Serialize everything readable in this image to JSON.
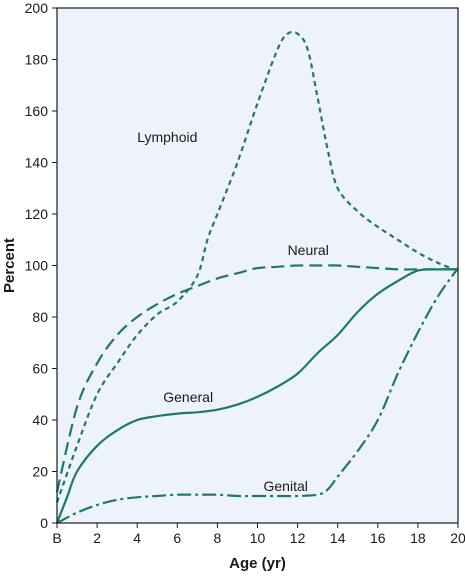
{
  "chart_data": {
    "type": "line",
    "title": "",
    "xlabel": "Age (yr)",
    "ylabel": "Percent",
    "xlim": [
      0,
      20
    ],
    "ylim": [
      0,
      200
    ],
    "x_ticks": [
      {
        "value": 0,
        "label": "B"
      },
      {
        "value": 2,
        "label": "2"
      },
      {
        "value": 4,
        "label": "4"
      },
      {
        "value": 6,
        "label": "6"
      },
      {
        "value": 8,
        "label": "8"
      },
      {
        "value": 10,
        "label": "10"
      },
      {
        "value": 12,
        "label": "12"
      },
      {
        "value": 14,
        "label": "14"
      },
      {
        "value": 16,
        "label": "16"
      },
      {
        "value": 18,
        "label": "18"
      },
      {
        "value": 20,
        "label": "20"
      }
    ],
    "y_ticks": [
      {
        "value": 0,
        "label": "0"
      },
      {
        "value": 20,
        "label": "20"
      },
      {
        "value": 40,
        "label": "40"
      },
      {
        "value": 60,
        "label": "60"
      },
      {
        "value": 80,
        "label": "80"
      },
      {
        "value": 100,
        "label": "100"
      },
      {
        "value": 120,
        "label": "120"
      },
      {
        "value": 140,
        "label": "140"
      },
      {
        "value": 160,
        "label": "160"
      },
      {
        "value": 180,
        "label": "180"
      },
      {
        "value": 200,
        "label": "200"
      }
    ],
    "grid": false,
    "plot_background": "#eef3fb",
    "line_color": "#1f7a64",
    "series": [
      {
        "name": "Lymphoid",
        "dash": "5,4",
        "label_at": [
          4,
          148
        ],
        "points": [
          [
            0,
            8
          ],
          [
            1,
            30
          ],
          [
            2,
            50
          ],
          [
            3,
            62
          ],
          [
            4,
            73
          ],
          [
            5,
            81
          ],
          [
            6,
            86
          ],
          [
            7,
            96
          ],
          [
            7.5,
            110
          ],
          [
            8,
            120
          ],
          [
            9,
            140
          ],
          [
            10,
            163
          ],
          [
            11,
            184
          ],
          [
            11.5,
            190
          ],
          [
            12,
            190
          ],
          [
            12.5,
            184
          ],
          [
            13,
            165
          ],
          [
            13.5,
            145
          ],
          [
            14,
            130
          ],
          [
            15,
            121
          ],
          [
            16,
            115
          ],
          [
            17,
            110
          ],
          [
            18,
            105
          ],
          [
            19,
            101
          ],
          [
            20,
            98
          ]
        ]
      },
      {
        "name": "Neural",
        "dash": "13,6",
        "label_at": [
          11.5,
          104
        ],
        "points": [
          [
            0,
            12
          ],
          [
            1,
            45
          ],
          [
            2,
            62
          ],
          [
            3,
            73
          ],
          [
            4,
            80
          ],
          [
            5,
            85
          ],
          [
            6,
            89
          ],
          [
            7,
            92
          ],
          [
            8,
            95
          ],
          [
            9,
            97
          ],
          [
            10,
            99
          ],
          [
            11,
            99.5
          ],
          [
            12,
            100
          ],
          [
            13,
            100
          ],
          [
            14,
            100
          ],
          [
            15,
            99.5
          ],
          [
            16,
            99
          ],
          [
            17,
            98.5
          ],
          [
            18,
            98.5
          ],
          [
            19,
            98.5
          ],
          [
            20,
            98.5
          ]
        ]
      },
      {
        "name": "General",
        "dash": "",
        "label_at": [
          5.3,
          47
        ],
        "points": [
          [
            0,
            0
          ],
          [
            0.5,
            10
          ],
          [
            1,
            20
          ],
          [
            2,
            30
          ],
          [
            3,
            36
          ],
          [
            4,
            40
          ],
          [
            5,
            41.5
          ],
          [
            6,
            42.5
          ],
          [
            7,
            43
          ],
          [
            8,
            44
          ],
          [
            9,
            46
          ],
          [
            10,
            49
          ],
          [
            11,
            53
          ],
          [
            12,
            58
          ],
          [
            13,
            66
          ],
          [
            14,
            73
          ],
          [
            15,
            82
          ],
          [
            16,
            89
          ],
          [
            17,
            94
          ],
          [
            18,
            98
          ],
          [
            19,
            98.5
          ],
          [
            20,
            98.5
          ]
        ]
      },
      {
        "name": "Genital",
        "dash": "14,4,3,4",
        "label_at": [
          10.3,
          12.5
        ],
        "points": [
          [
            0,
            0
          ],
          [
            1,
            4
          ],
          [
            2,
            7
          ],
          [
            3,
            9
          ],
          [
            4,
            10
          ],
          [
            5,
            10.5
          ],
          [
            6,
            11
          ],
          [
            7,
            11
          ],
          [
            8,
            11
          ],
          [
            9,
            10.5
          ],
          [
            10,
            10.5
          ],
          [
            11,
            10.5
          ],
          [
            12,
            10.5
          ],
          [
            13,
            11
          ],
          [
            13.5,
            13
          ],
          [
            14,
            18
          ],
          [
            15,
            28
          ],
          [
            16,
            40
          ],
          [
            17,
            58
          ],
          [
            18,
            74
          ],
          [
            19,
            88
          ],
          [
            20,
            99
          ]
        ]
      }
    ]
  }
}
